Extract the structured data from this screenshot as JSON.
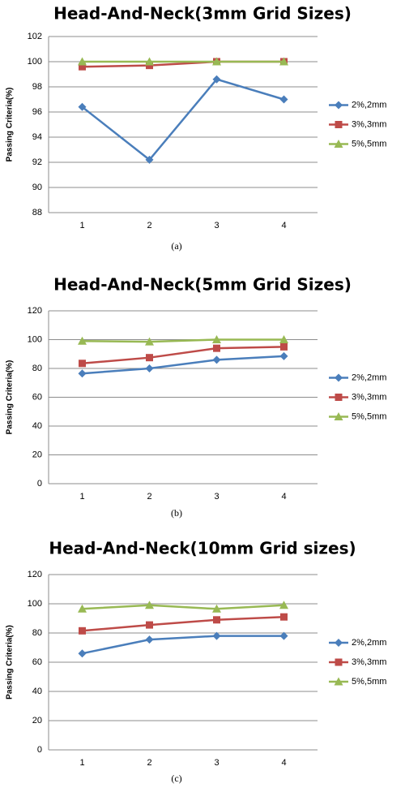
{
  "chart_data": [
    {
      "type": "line",
      "title": "Head-And-Neck(3mm Grid Sizes)",
      "y_label": "Passing Criteria(%)",
      "caption": "(a)",
      "categories": [
        "1",
        "2",
        "3",
        "4"
      ],
      "ylim": [
        88,
        102
      ],
      "yticks": [
        88,
        90,
        92,
        94,
        96,
        98,
        100,
        102
      ],
      "grid": true,
      "series": [
        {
          "name": "2%,2mm",
          "color": "#4a7ebb",
          "marker": "diamond",
          "values": [
            96.4,
            92.2,
            98.6,
            97.0
          ]
        },
        {
          "name": "3%,3mm",
          "color": "#be4b48",
          "marker": "square",
          "values": [
            99.6,
            99.7,
            100,
            100
          ]
        },
        {
          "name": "5%,5mm",
          "color": "#98b954",
          "marker": "triangle",
          "values": [
            100,
            100,
            100,
            100
          ]
        }
      ]
    },
    {
      "type": "line",
      "title": "Head-And-Neck(5mm Grid Sizes)",
      "y_label": "Passing Criteria(%)",
      "caption": "(b)",
      "categories": [
        "1",
        "2",
        "3",
        "4"
      ],
      "ylim": [
        0,
        120
      ],
      "yticks": [
        0,
        20,
        40,
        60,
        80,
        100,
        120
      ],
      "grid": true,
      "series": [
        {
          "name": "2%,2mm",
          "color": "#4a7ebb",
          "marker": "diamond",
          "values": [
            76.5,
            80,
            86,
            88.5
          ]
        },
        {
          "name": "3%,3mm",
          "color": "#be4b48",
          "marker": "square",
          "values": [
            83.5,
            87.5,
            94,
            95
          ]
        },
        {
          "name": "5%,5mm",
          "color": "#98b954",
          "marker": "triangle",
          "values": [
            99,
            98.5,
            100,
            100
          ]
        }
      ]
    },
    {
      "type": "line",
      "title": "Head-And-Neck(10mm Grid sizes)",
      "y_label": "Passing Criteria(%)",
      "caption": "(c)",
      "categories": [
        "1",
        "2",
        "3",
        "4"
      ],
      "ylim": [
        0,
        120
      ],
      "yticks": [
        0,
        20,
        40,
        60,
        80,
        100,
        120
      ],
      "grid": true,
      "series": [
        {
          "name": "2%,2mm",
          "color": "#4a7ebb",
          "marker": "diamond",
          "values": [
            66,
            75.5,
            78,
            78
          ]
        },
        {
          "name": "3%,3mm",
          "color": "#be4b48",
          "marker": "square",
          "values": [
            81.5,
            85.5,
            89,
            91
          ]
        },
        {
          "name": "5%,5mm",
          "color": "#98b954",
          "marker": "triangle",
          "values": [
            96.5,
            99,
            96.5,
            99
          ]
        }
      ]
    }
  ]
}
